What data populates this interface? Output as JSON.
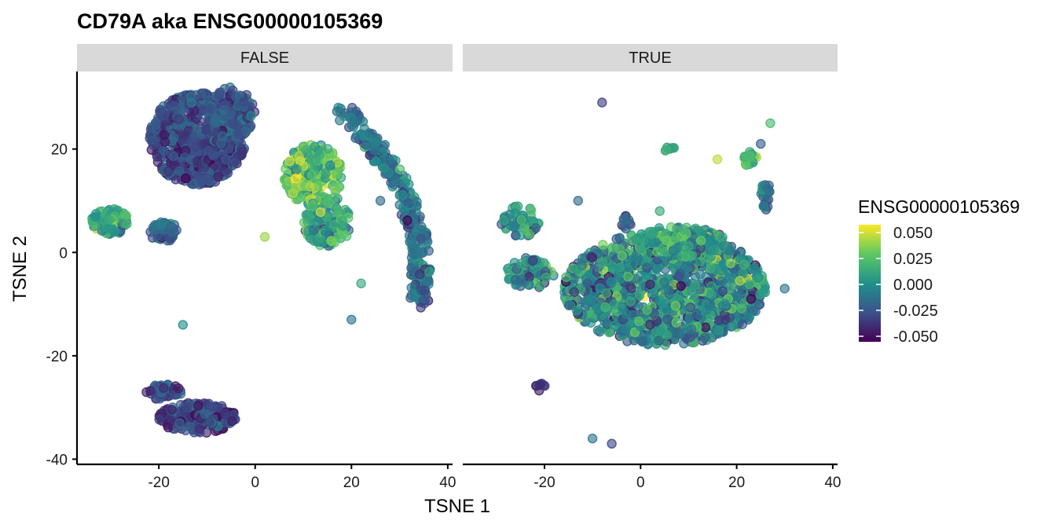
{
  "chart_data": {
    "type": "scatter",
    "title": "CD79A  aka ENSG00000105369",
    "xlabel": "TSNE 1",
    "ylabel": "TSNE 2",
    "xlim": [
      -37,
      41
    ],
    "ylim": [
      -41,
      35
    ],
    "x_ticks": [
      "-20",
      "0",
      "20",
      "40"
    ],
    "x_tick_values": [
      -20,
      0,
      20,
      40
    ],
    "y_ticks": [
      "20",
      "0",
      "-20",
      "-40"
    ],
    "y_tick_values": [
      20,
      0,
      -20,
      -40
    ],
    "facets": [
      "FALSE",
      "TRUE"
    ],
    "grid": false,
    "legend": {
      "title": "ENSG00000105369",
      "placement": "right",
      "labels": [
        "0.050",
        "0.025",
        "0.000",
        "-0.025",
        "-0.050"
      ],
      "values": [
        0.05,
        0.025,
        0.0,
        -0.025,
        -0.05
      ],
      "colors": [
        "#440154",
        "#3b528b",
        "#21908c",
        "#5dc863",
        "#fde725"
      ]
    },
    "panels": [
      {
        "facet": "FALSE",
        "clusters": [
          {
            "cx": -12,
            "cy": 22,
            "rx": 10,
            "ry": 9,
            "n": 700,
            "mean": -0.028,
            "sd": 0.01
          },
          {
            "cx": -5,
            "cy": 27,
            "rx": 5,
            "ry": 5,
            "n": 160,
            "mean": -0.025,
            "sd": 0.01
          },
          {
            "cx": 12,
            "cy": 15,
            "rx": 6,
            "ry": 6,
            "n": 220,
            "mean": 0.02,
            "sd": 0.015
          },
          {
            "cx": 15,
            "cy": 6,
            "rx": 5,
            "ry": 5,
            "n": 120,
            "mean": 0.008,
            "sd": 0.015
          },
          {
            "cx": -30,
            "cy": 6,
            "rx": 4,
            "ry": 2.5,
            "n": 90,
            "mean": 0.006,
            "sd": 0.012
          },
          {
            "cx": -19,
            "cy": 4,
            "rx": 3,
            "ry": 2,
            "n": 50,
            "mean": -0.02,
            "sd": 0.01
          },
          {
            "cx": -12,
            "cy": -32,
            "rx": 8,
            "ry": 3,
            "n": 190,
            "mean": -0.03,
            "sd": 0.01
          },
          {
            "cx": -19,
            "cy": -27,
            "rx": 4,
            "ry": 1.5,
            "n": 50,
            "mean": -0.03,
            "sd": 0.01
          }
        ],
        "arc": {
          "from": [
            18,
            28
          ],
          "to": [
            34,
            -10
          ],
          "width": 2,
          "n": 320,
          "mean": -0.012,
          "sd": 0.012
        },
        "outliers": [
          {
            "x": -15,
            "y": -14,
            "v": 0.0
          },
          {
            "x": 20,
            "y": -13,
            "v": -0.01
          },
          {
            "x": 22,
            "y": -6,
            "v": 0.01
          },
          {
            "x": 2,
            "y": 3,
            "v": 0.035
          },
          {
            "x": 26,
            "y": 10,
            "v": -0.015
          }
        ]
      },
      {
        "facet": "TRUE",
        "clusters": [
          {
            "cx": 5,
            "cy": -7,
            "rx": 21,
            "ry": 11,
            "n": 1300,
            "mean": -0.005,
            "sd": 0.018
          },
          {
            "cx": 8,
            "cy": 2,
            "rx": 10,
            "ry": 3,
            "n": 200,
            "mean": 0.005,
            "sd": 0.016
          },
          {
            "cx": -25,
            "cy": 6,
            "rx": 4,
            "ry": 3,
            "n": 60,
            "mean": 0.0,
            "sd": 0.014
          },
          {
            "cx": -23,
            "cy": -4,
            "rx": 5,
            "ry": 3,
            "n": 80,
            "mean": -0.005,
            "sd": 0.015
          },
          {
            "cx": 23,
            "cy": 18,
            "rx": 1.5,
            "ry": 1.5,
            "n": 20,
            "mean": 0.018,
            "sd": 0.01
          },
          {
            "cx": 26,
            "cy": 11,
            "rx": 1,
            "ry": 3,
            "n": 25,
            "mean": -0.012,
            "sd": 0.01
          },
          {
            "cx": 6,
            "cy": 20,
            "rx": 1,
            "ry": 1,
            "n": 8,
            "mean": 0.012,
            "sd": 0.006
          },
          {
            "cx": -3,
            "cy": 6,
            "rx": 1,
            "ry": 1.5,
            "n": 10,
            "mean": -0.018,
            "sd": 0.01
          },
          {
            "cx": -21,
            "cy": -26,
            "rx": 1.2,
            "ry": 0.8,
            "n": 8,
            "mean": -0.035,
            "sd": 0.006
          }
        ],
        "outliers": [
          {
            "x": -8,
            "y": 29,
            "v": -0.03
          },
          {
            "x": 25,
            "y": 21,
            "v": -0.02
          },
          {
            "x": 27,
            "y": 25,
            "v": 0.018
          },
          {
            "x": 16,
            "y": 18,
            "v": 0.04
          },
          {
            "x": 30,
            "y": -7,
            "v": -0.01
          },
          {
            "x": 23,
            "y": -9,
            "v": -0.05
          },
          {
            "x": -10,
            "y": -36,
            "v": -0.01
          },
          {
            "x": -6,
            "y": -37,
            "v": -0.028
          },
          {
            "x": -13,
            "y": 10,
            "v": -0.015
          },
          {
            "x": 4,
            "y": 8,
            "v": 0.01
          }
        ]
      }
    ]
  }
}
